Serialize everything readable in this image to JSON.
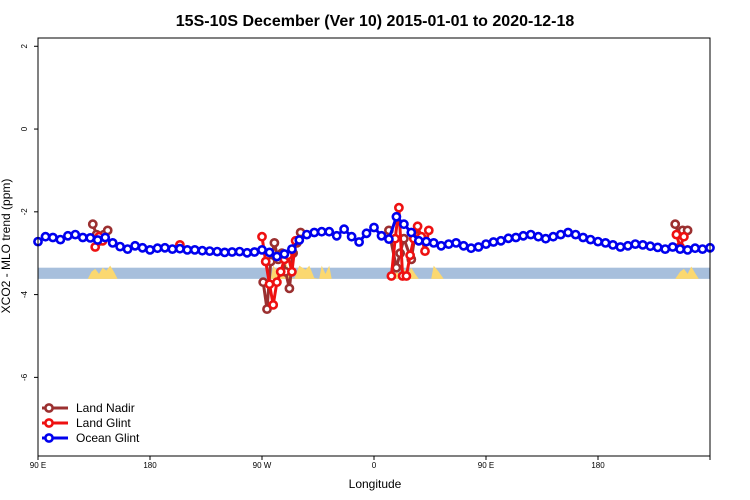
{
  "chart_data": {
    "type": "line",
    "title": "15S-10S December (Ver 10)   2015-01-01 to 2020-12-18",
    "xlabel": "Longitude",
    "ylabel": "XCO2 - MLO trend (ppm)",
    "xlim": [
      -90,
      180
    ],
    "ylim": [
      -7.9,
      2.2
    ],
    "x_ticks": [
      {
        "value": -90,
        "label": "90 E"
      },
      {
        "value": -45,
        "label": "180"
      },
      {
        "value": 0,
        "label": "90 W"
      },
      {
        "value": 45,
        "label": "0"
      },
      {
        "value": 90,
        "label": "90 E"
      },
      {
        "value": 135,
        "label": "180"
      }
    ],
    "y_ticks": [
      {
        "value": 2,
        "label": "2"
      },
      {
        "value": 0,
        "label": "0"
      },
      {
        "value": -2,
        "label": "-2"
      },
      {
        "value": -4,
        "label": "-4"
      },
      {
        "value": -6,
        "label": "-6"
      }
    ],
    "band": {
      "y0": -3.62,
      "y1": -3.35,
      "color": "#a7bfdc"
    },
    "land_fill": {
      "color": "#fbd870",
      "base": -3.62,
      "regions": [
        [
          [
            -70,
            -3.62
          ],
          [
            -68.5,
            -3.45
          ],
          [
            -67,
            -3.38
          ],
          [
            -65.5,
            -3.5
          ],
          [
            -64,
            -3.35
          ],
          [
            -62.5,
            -3.42
          ],
          [
            -61,
            -3.3
          ],
          [
            -59.5,
            -3.45
          ],
          [
            -58,
            -3.62
          ]
        ],
        [
          [
            3.5,
            -3.62
          ],
          [
            4.5,
            -3.3
          ],
          [
            7,
            -3.5
          ],
          [
            9.5,
            -3.2
          ],
          [
            12,
            -3.6
          ],
          [
            13,
            -3.62
          ],
          [
            15,
            -3.3
          ],
          [
            17.5,
            -3.4
          ],
          [
            19,
            -3.3
          ],
          [
            21,
            -3.6
          ],
          [
            23,
            -3.62
          ],
          [
            24,
            -3.3
          ],
          [
            25.5,
            -3.5
          ],
          [
            27,
            -3.3
          ],
          [
            28,
            -3.62
          ]
        ],
        [
          [
            53,
            -3.62
          ],
          [
            54,
            -3.42
          ],
          [
            55.5,
            -3.55
          ],
          [
            57,
            -3.38
          ],
          [
            58.5,
            -3.5
          ],
          [
            60,
            -3.35
          ],
          [
            61.5,
            -3.5
          ],
          [
            63,
            -3.62
          ]
        ],
        [
          [
            68,
            -3.62
          ],
          [
            69,
            -3.3
          ],
          [
            71,
            -3.45
          ],
          [
            73,
            -3.62
          ]
        ],
        [
          [
            166,
            -3.62
          ],
          [
            168,
            -3.45
          ],
          [
            169.5,
            -3.38
          ],
          [
            171,
            -3.5
          ],
          [
            172.5,
            -3.32
          ],
          [
            174,
            -3.48
          ],
          [
            175.5,
            -3.62
          ]
        ]
      ]
    },
    "series": [
      {
        "name": "Land Nadir",
        "color": "#9b3030",
        "segments": [
          [
            [
              -68,
              -2.3
            ],
            [
              -66.5,
              -2.55
            ],
            [
              -65,
              -2.7
            ],
            [
              -63.5,
              -2.55
            ],
            [
              -62,
              -2.45
            ]
          ],
          [
            [
              0.5,
              -3.7
            ],
            [
              2,
              -4.35
            ],
            [
              3.5,
              -3.2
            ],
            [
              5,
              -2.75
            ],
            [
              6.5,
              -3.15
            ],
            [
              8,
              -3.0
            ],
            [
              9.5,
              -3.45
            ],
            [
              11,
              -3.85
            ],
            [
              12.5,
              -3.0
            ],
            [
              14,
              -2.75
            ],
            [
              15.5,
              -2.5
            ]
          ],
          [
            [
              51,
              -2.45
            ],
            [
              54,
              -3.35
            ],
            [
              55.5,
              -3.0
            ],
            [
              57,
              -2.65
            ],
            [
              60,
              -3.15
            ],
            [
              61.5,
              -2.55
            ]
          ],
          [
            [
              166,
              -2.3
            ],
            [
              167.5,
              -2.55
            ],
            [
              169,
              -2.45
            ],
            [
              171,
              -2.45
            ]
          ]
        ]
      },
      {
        "name": "Land Glint",
        "color": "#ee1111",
        "segments": [
          [
            [
              -67,
              -2.85
            ],
            [
              -65.5,
              -2.6
            ],
            [
              -64,
              -2.7
            ]
          ],
          [
            [
              -33,
              -2.8
            ]
          ],
          [
            [
              0,
              -2.6
            ],
            [
              1.5,
              -3.2
            ],
            [
              3,
              -3.75
            ],
            [
              4.5,
              -4.25
            ],
            [
              6,
              -3.7
            ],
            [
              7.5,
              -3.45
            ],
            [
              9,
              -3.15
            ],
            [
              10.5,
              -3.05
            ],
            [
              12,
              -3.45
            ],
            [
              13.5,
              -2.7
            ]
          ],
          [
            [
              52,
              -3.55
            ],
            [
              53.5,
              -2.65
            ],
            [
              55,
              -1.9
            ],
            [
              56.5,
              -3.55
            ],
            [
              58,
              -3.55
            ],
            [
              59.5,
              -3.05
            ],
            [
              61,
              -2.65
            ],
            [
              62.5,
              -2.35
            ],
            [
              64,
              -2.6
            ],
            [
              65.5,
              -2.95
            ],
            [
              67,
              -2.45
            ]
          ],
          [
            [
              166.5,
              -2.55
            ],
            [
              168,
              -2.85
            ],
            [
              169.5,
              -2.6
            ]
          ]
        ]
      },
      {
        "name": "Ocean Glint",
        "color": "#0000ee",
        "segments": [
          [
            [
              -90,
              -2.72
            ],
            [
              -87,
              -2.6
            ],
            [
              -84,
              -2.62
            ],
            [
              -81,
              -2.67
            ],
            [
              -78,
              -2.58
            ],
            [
              -75,
              -2.55
            ],
            [
              -72,
              -2.62
            ],
            [
              -69,
              -2.63
            ],
            [
              -66,
              -2.68
            ],
            [
              -63,
              -2.62
            ],
            [
              -60,
              -2.75
            ],
            [
              -57,
              -2.84
            ],
            [
              -54,
              -2.9
            ],
            [
              -51,
              -2.82
            ],
            [
              -48,
              -2.87
            ],
            [
              -45,
              -2.92
            ],
            [
              -42,
              -2.88
            ],
            [
              -39,
              -2.87
            ],
            [
              -36,
              -2.9
            ],
            [
              -33,
              -2.89
            ],
            [
              -30,
              -2.92
            ],
            [
              -27,
              -2.92
            ],
            [
              -24,
              -2.94
            ],
            [
              -21,
              -2.95
            ],
            [
              -18,
              -2.96
            ],
            [
              -15,
              -2.98
            ],
            [
              -12,
              -2.97
            ],
            [
              -9,
              -2.96
            ],
            [
              -6,
              -2.99
            ],
            [
              -3,
              -2.97
            ],
            [
              0,
              -2.92
            ],
            [
              3,
              -2.98
            ],
            [
              6,
              -3.08
            ],
            [
              9,
              -3.02
            ],
            [
              12,
              -2.9
            ],
            [
              15,
              -2.68
            ],
            [
              18,
              -2.55
            ],
            [
              21,
              -2.5
            ],
            [
              24,
              -2.48
            ],
            [
              27,
              -2.48
            ],
            [
              30,
              -2.58
            ],
            [
              33,
              -2.42
            ],
            [
              36,
              -2.6
            ],
            [
              39,
              -2.73
            ],
            [
              42,
              -2.52
            ],
            [
              45,
              -2.38
            ],
            [
              48,
              -2.58
            ],
            [
              51,
              -2.66
            ],
            [
              54,
              -2.12
            ],
            [
              57,
              -2.3
            ],
            [
              60,
              -2.5
            ],
            [
              63,
              -2.7
            ],
            [
              66,
              -2.72
            ],
            [
              69,
              -2.75
            ],
            [
              72,
              -2.82
            ],
            [
              75,
              -2.78
            ],
            [
              78,
              -2.75
            ],
            [
              81,
              -2.82
            ],
            [
              84,
              -2.88
            ],
            [
              87,
              -2.85
            ],
            [
              90,
              -2.78
            ],
            [
              93,
              -2.73
            ],
            [
              96,
              -2.7
            ],
            [
              99,
              -2.64
            ],
            [
              102,
              -2.62
            ],
            [
              105,
              -2.58
            ],
            [
              108,
              -2.55
            ],
            [
              111,
              -2.6
            ],
            [
              114,
              -2.65
            ],
            [
              117,
              -2.6
            ],
            [
              120,
              -2.55
            ],
            [
              123,
              -2.5
            ],
            [
              126,
              -2.55
            ],
            [
              129,
              -2.62
            ],
            [
              132,
              -2.67
            ],
            [
              135,
              -2.72
            ],
            [
              138,
              -2.75
            ],
            [
              141,
              -2.8
            ],
            [
              144,
              -2.85
            ],
            [
              147,
              -2.82
            ],
            [
              150,
              -2.78
            ],
            [
              153,
              -2.8
            ],
            [
              156,
              -2.83
            ],
            [
              159,
              -2.86
            ],
            [
              162,
              -2.9
            ],
            [
              165,
              -2.85
            ],
            [
              168,
              -2.9
            ],
            [
              171,
              -2.92
            ],
            [
              174,
              -2.88
            ],
            [
              177,
              -2.9
            ],
            [
              180,
              -2.87
            ]
          ]
        ]
      }
    ],
    "legend_position": "bottom-left"
  }
}
